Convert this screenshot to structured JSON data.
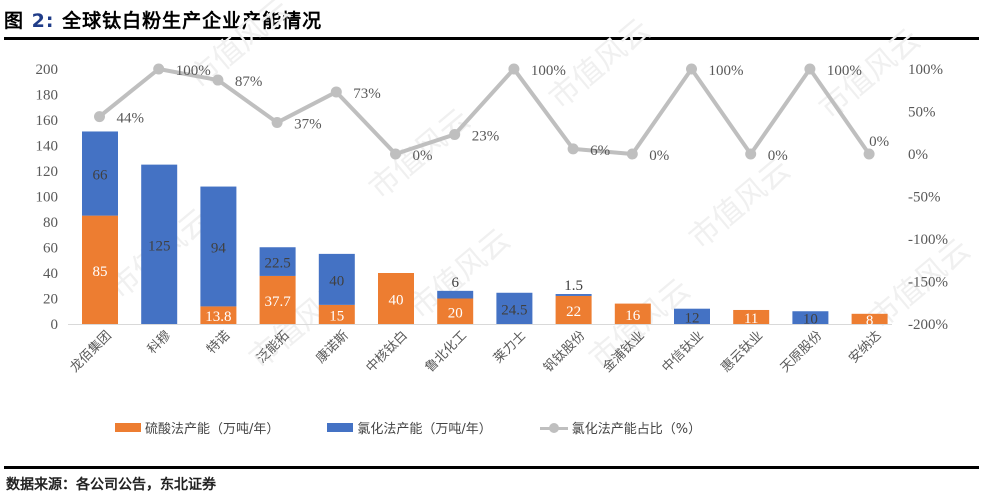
{
  "figure": {
    "label": "图",
    "number": "2:",
    "title": "全球钛白粉生产企业产能情况",
    "source": "数据来源：各公司公告，东北证券"
  },
  "legend": {
    "sulfate": "硫酸法产能（万吨/年）",
    "chloride": "氯化法产能（万吨/年）",
    "ratio": "氯化法产能占比（%）"
  },
  "colors": {
    "sulfate": "#ed7d31",
    "chloride": "#4472c4",
    "ratio": "#bfbfbf"
  },
  "chart_data": {
    "type": "bar",
    "title": "全球钛白粉生产企业产能情况",
    "xlabel": "",
    "ylabel": "",
    "ylim": [
      0,
      200
    ],
    "y2lim": [
      -200,
      100
    ],
    "y_ticks": [
      0,
      20,
      40,
      60,
      80,
      100,
      120,
      140,
      160,
      180,
      200
    ],
    "y2_ticks": [
      "-200%",
      "-150%",
      "-100%",
      "-50%",
      "0%",
      "50%",
      "100%"
    ],
    "legend_position": "bottom",
    "grid": false,
    "stacked": true,
    "categories": [
      "龙佰集团",
      "科穆",
      "特诺",
      "泛能拓",
      "康诺斯",
      "中核钛白",
      "鲁北化工",
      "莱力士",
      "钒钛股份",
      "金浦钛业",
      "中信钛业",
      "惠云钛业",
      "天原股份",
      "安纳达"
    ],
    "series": [
      {
        "name": "硫酸法产能（万吨/年）",
        "type": "bar",
        "axis": "left",
        "values": [
          85,
          0,
          13.8,
          37.7,
          15,
          40,
          20,
          0,
          22,
          16,
          0,
          11,
          0,
          8
        ],
        "labels": [
          "85",
          "",
          "13.8",
          "37.7",
          "15",
          "40",
          "20",
          "",
          "22",
          "16",
          "",
          "11",
          "",
          "8"
        ]
      },
      {
        "name": "氯化法产能（万吨/年）",
        "type": "bar",
        "axis": "left",
        "values": [
          66,
          125,
          94,
          22.5,
          40,
          0,
          6,
          24.5,
          1.5,
          0,
          12,
          0,
          10,
          0
        ],
        "labels": [
          "66",
          "125",
          "94",
          "22.5",
          "40",
          "",
          "6",
          "24.5",
          "1.5",
          "",
          "12",
          "",
          "10",
          ""
        ]
      },
      {
        "name": "氯化法产能占比（%）",
        "type": "line",
        "axis": "right",
        "values": [
          44,
          100,
          87,
          37,
          73,
          0,
          23,
          100,
          6,
          0,
          100,
          0,
          100,
          0
        ],
        "labels": [
          "44%",
          "100%",
          "87%",
          "37%",
          "73%",
          "0%",
          "23%",
          "100%",
          "6%",
          "0%",
          "100%",
          "0%",
          "100%",
          "0%"
        ]
      }
    ]
  }
}
